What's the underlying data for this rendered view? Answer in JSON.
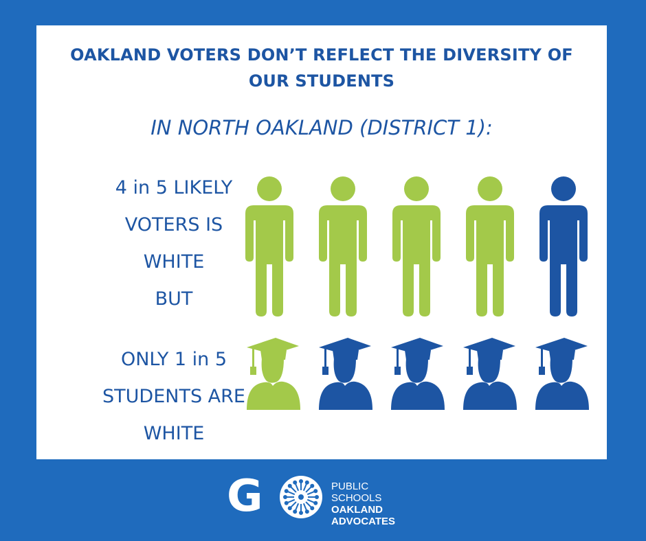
{
  "headline": {
    "line1": "OAKLAND VOTERS DON’T REFLECT THE DIVERSITY OF",
    "line2": "OUR STUDENTS"
  },
  "subheading": "IN NORTH OAKLAND (DISTRICT 1):",
  "voters": {
    "lines": [
      "4 in 5 LIKELY",
      "VOTERS IS",
      "WHITE"
    ],
    "white_count": 4,
    "total": 5,
    "icons": [
      "person-icon",
      "person-icon",
      "person-icon",
      "person-icon",
      "person-icon"
    ]
  },
  "connector": "BUT",
  "students": {
    "lines": [
      "ONLY 1 in 5",
      "STUDENTS ARE",
      "WHITE"
    ],
    "white_count": 1,
    "total": 5,
    "icons": [
      "graduate-icon",
      "graduate-icon",
      "graduate-icon",
      "graduate-icon",
      "graduate-icon"
    ]
  },
  "colors": {
    "background": "#1f6bbd",
    "white_group": "#a3c94a",
    "other_group": "#1d55a3",
    "text": "#1d55a3"
  },
  "logo": {
    "mark": "GO",
    "line1": "PUBLIC SCHOOLS",
    "line2": "OAKLAND",
    "line3": "ADVOCATES"
  }
}
